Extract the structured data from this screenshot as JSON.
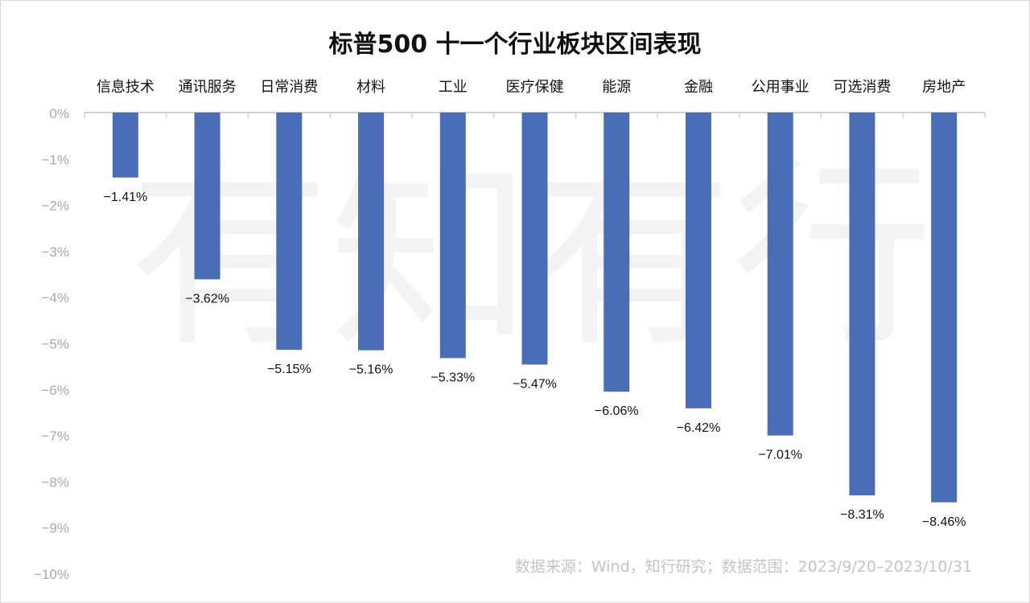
{
  "watermark": "有知有行",
  "source": "数据来源：Wind，知行研究；数据范围：2023/9/20–2023/10/31",
  "colors": {
    "bar": "#4a6db8",
    "axis": "#d0d0d0",
    "tick_label": "#a8a8a8"
  },
  "chart_data": {
    "type": "bar",
    "title": "标普500 十一个行业板块区间表现",
    "xlabel": "",
    "ylabel": "",
    "categories": [
      "信息技术",
      "通讯服务",
      "日常消费",
      "材料",
      "工业",
      "医疗保健",
      "能源",
      "金融",
      "公用事业",
      "可选消费",
      "房地产"
    ],
    "values": [
      -1.41,
      -3.62,
      -5.15,
      -5.16,
      -5.33,
      -5.47,
      -6.06,
      -6.42,
      -7.01,
      -8.31,
      -8.46
    ],
    "data_labels": [
      "−1.41%",
      "−3.62%",
      "−5.15%",
      "−5.16%",
      "−5.33%",
      "−5.47%",
      "−6.06%",
      "−6.42%",
      "−7.01%",
      "−8.31%",
      "−8.46%"
    ],
    "ylim": [
      -10,
      0
    ],
    "yticks": [
      0,
      -1,
      -2,
      -3,
      -4,
      -5,
      -6,
      -7,
      -8,
      -9,
      -10
    ],
    "ytick_labels": [
      "0%",
      "−1%",
      "−2%",
      "−3%",
      "−4%",
      "−5%",
      "−6%",
      "−7%",
      "−8%",
      "−9%",
      "−10%"
    ],
    "category_axis_position": "top",
    "grid": false,
    "legend": "none"
  }
}
